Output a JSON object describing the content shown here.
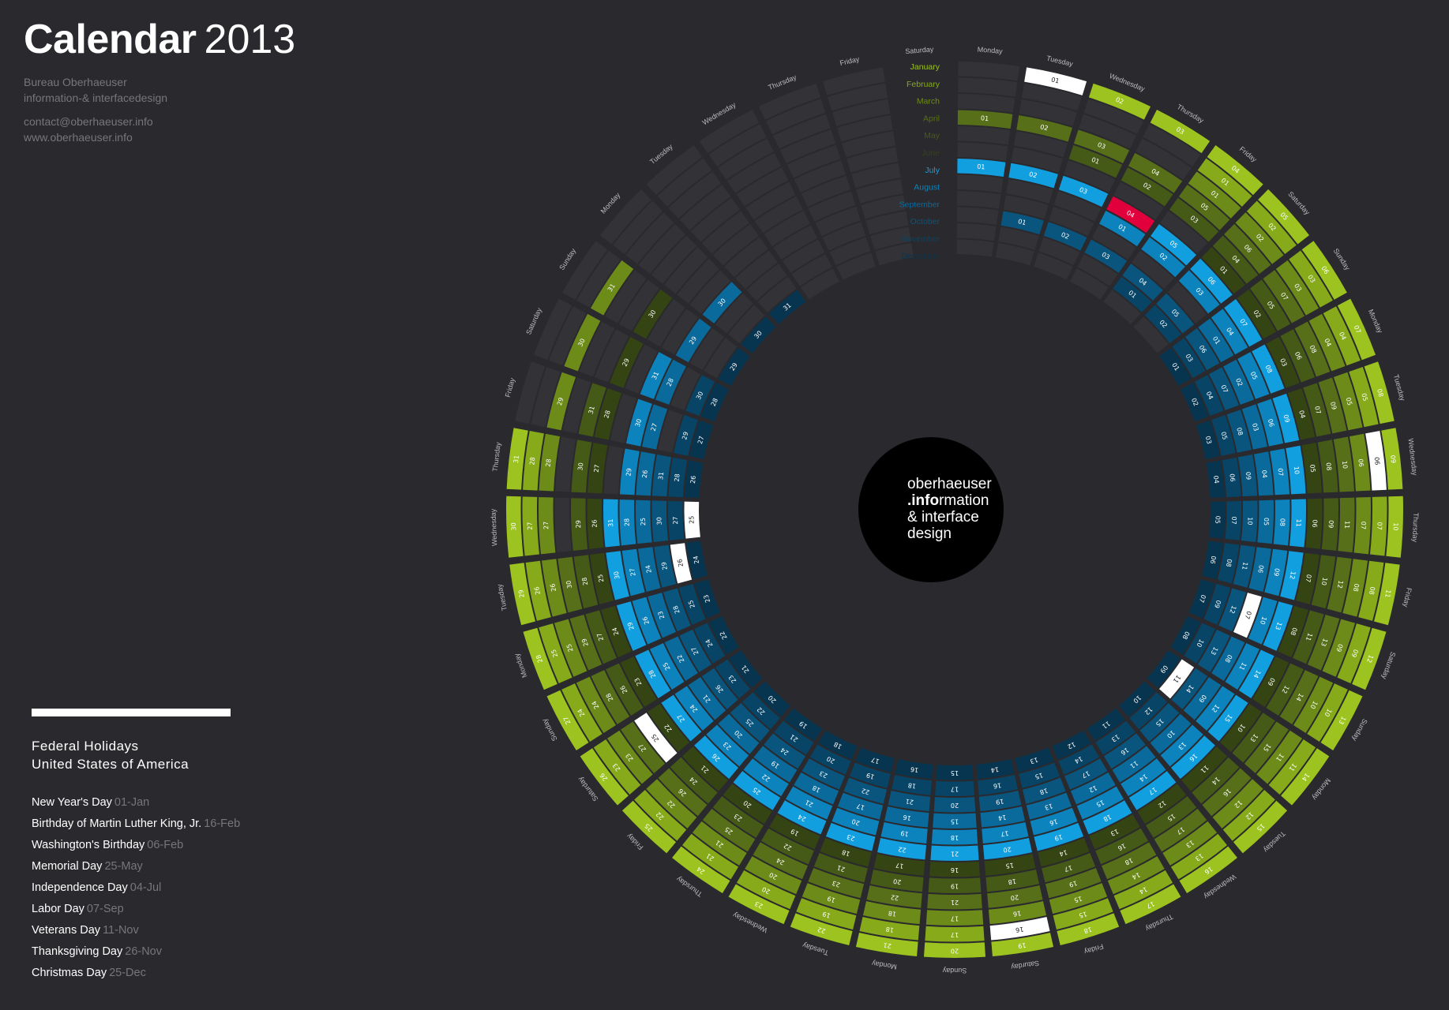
{
  "header": {
    "title": "Calendar",
    "year": "2013",
    "bureau": "Bureau Oberhaeuser",
    "tagline": "information-& interfacedesign",
    "email": "contact@oberhaeuser.info",
    "website": "www.oberhaeuser.info"
  },
  "logo": {
    "line1": "oberhaeuser",
    "line2_strong": ".info",
    "line2_rest": "rmation",
    "line3": "& interface",
    "line4": "design"
  },
  "holidays": {
    "title_line1": "Federal Holidays",
    "title_line2": "United States of America",
    "items": [
      {
        "name": "New Year's Day",
        "date": "01-Jan",
        "month": 1,
        "day": 1
      },
      {
        "name": "Birthday of Martin Luther King, Jr.",
        "date": "16-Feb",
        "month": 2,
        "day": 16
      },
      {
        "name": "Washington's Birthday",
        "date": "06-Feb",
        "month": 2,
        "day": 6
      },
      {
        "name": "Memorial Day",
        "date": "25-May",
        "month": 5,
        "day": 25
      },
      {
        "name": "Independence Day",
        "date": "04-Jul",
        "month": 7,
        "day": 4
      },
      {
        "name": "Labor Day",
        "date": "07-Sep",
        "month": 9,
        "day": 7
      },
      {
        "name": "Veterans Day",
        "date": "11-Nov",
        "month": 11,
        "day": 11
      },
      {
        "name": "Thanksgiving Day",
        "date": "26-Nov",
        "month": 11,
        "day": 26
      },
      {
        "name": "Christmas Day",
        "date": "25-Dec",
        "month": 12,
        "day": 25
      }
    ]
  },
  "calendar": {
    "year": 2013,
    "weekdays": [
      "Monday",
      "Tuesday",
      "Wednesday",
      "Thursday",
      "Friday",
      "Saturday",
      "Sunday"
    ],
    "months": [
      {
        "name": "January",
        "color": "#9cc31f",
        "days": 31
      },
      {
        "name": "February",
        "color": "#86aa1a",
        "days": 28
      },
      {
        "name": "March",
        "color": "#6d8b19",
        "days": 31
      },
      {
        "name": "April",
        "color": "#566f18",
        "days": 30
      },
      {
        "name": "May",
        "color": "#455a16",
        "days": 31
      },
      {
        "name": "June",
        "color": "#344412",
        "days": 30
      },
      {
        "name": "July",
        "color": "#129fe0",
        "days": 31
      },
      {
        "name": "August",
        "color": "#0d83bd",
        "days": 31
      },
      {
        "name": "September",
        "color": "#0a6a9b",
        "days": 30
      },
      {
        "name": "October",
        "color": "#09557e",
        "days": 31
      },
      {
        "name": "November",
        "color": "#084466",
        "days": 30
      },
      {
        "name": "December",
        "color": "#073550",
        "days": 31
      }
    ],
    "highlight_day": {
      "month": 7,
      "day": 4,
      "color": "#e1003c"
    },
    "holiday_color": "#ffffff",
    "empty_cell_color": "#333236",
    "center_color": "#000000"
  }
}
